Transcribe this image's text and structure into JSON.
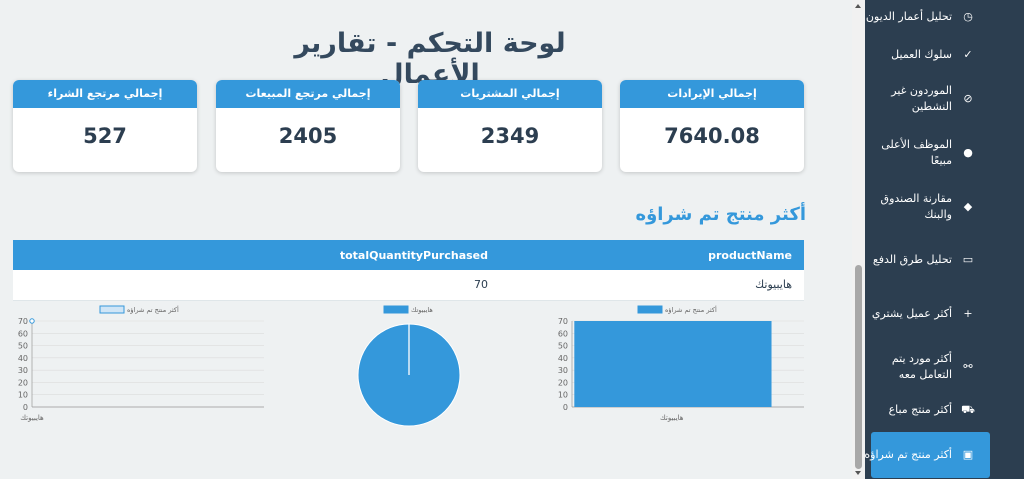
{
  "page": {
    "title": "لوحة التحكم - تقارير الأعمال"
  },
  "cards": [
    {
      "label": "إجمالي مرتجع الشراء",
      "value": "527"
    },
    {
      "label": "إجمالي مرتجع المبيعات",
      "value": "2405"
    },
    {
      "label": "إجمالي المشتريات",
      "value": "2349"
    },
    {
      "label": "إجمالي الإيرادات",
      "value": "7640.08"
    }
  ],
  "section": {
    "title": "أكثر منتج تم شراؤه"
  },
  "table": {
    "headers": {
      "quantity": "totalQuantityPurchased",
      "name": "productName"
    },
    "rows": [
      {
        "quantity": "70",
        "name": "هايبيوتك"
      }
    ]
  },
  "chart_data": [
    {
      "type": "line",
      "title": "",
      "legend": "أكثر منتج تم شراؤه",
      "legend_position": "top",
      "categories": [
        "هايبيوتك"
      ],
      "series": [
        {
          "name": "أكثر منتج تم شراؤه",
          "values": [
            70
          ]
        }
      ],
      "ylim": [
        0,
        70
      ],
      "yticks": [
        0,
        10,
        20,
        30,
        40,
        50,
        60,
        70
      ],
      "grid": true,
      "xlabel": "",
      "ylabel": ""
    },
    {
      "type": "pie",
      "title": "",
      "legend": "هايبيوتك",
      "legend_position": "top",
      "categories": [
        "هايبيوتك"
      ],
      "values": [
        70
      ],
      "color": "#3498db"
    },
    {
      "type": "bar",
      "title": "",
      "legend": "أكثر منتج تم شراؤه",
      "legend_position": "top",
      "categories": [
        "هايبيوتك"
      ],
      "values": [
        70
      ],
      "ylim": [
        0,
        70
      ],
      "yticks": [
        0,
        10,
        20,
        30,
        40,
        50,
        60,
        70
      ],
      "grid": true,
      "color": "#3498db"
    }
  ],
  "sidebar": {
    "items": [
      {
        "label": "تحليل أعمار الديون",
        "icon": "clock-icon",
        "glyph": "◷"
      },
      {
        "label": "سلوك العميل",
        "icon": "user-check-icon",
        "glyph": "✓"
      },
      {
        "label": "الموردون غير النشطين",
        "icon": "user-slash-icon",
        "glyph": "⊘"
      },
      {
        "label": "الموظف الأعلى مبيعًا",
        "icon": "user-tie-icon",
        "glyph": "●"
      },
      {
        "label": "مقارنة الصندوق والبنك",
        "icon": "piggy-bank-icon",
        "glyph": "◆"
      },
      {
        "label": "تحليل طرق الدفع",
        "icon": "credit-card-icon",
        "glyph": "▭"
      },
      {
        "label": "أكثر عميل يشتري",
        "icon": "user-plus-icon",
        "glyph": "+"
      },
      {
        "label": "أكثر مورد يتم التعامل معه",
        "icon": "handshake-icon",
        "glyph": "⚯"
      },
      {
        "label": "أكثر منتج مباع",
        "icon": "cart-icon",
        "glyph": "⛟"
      },
      {
        "label": "أكثر منتج تم شراؤه",
        "icon": "box-open-icon",
        "glyph": "▣"
      }
    ],
    "active_index": 9
  },
  "colors": {
    "accent": "#3498db",
    "sidebar": "#2c3e50",
    "text": "#2c3e50",
    "background": "#eef1f2"
  }
}
